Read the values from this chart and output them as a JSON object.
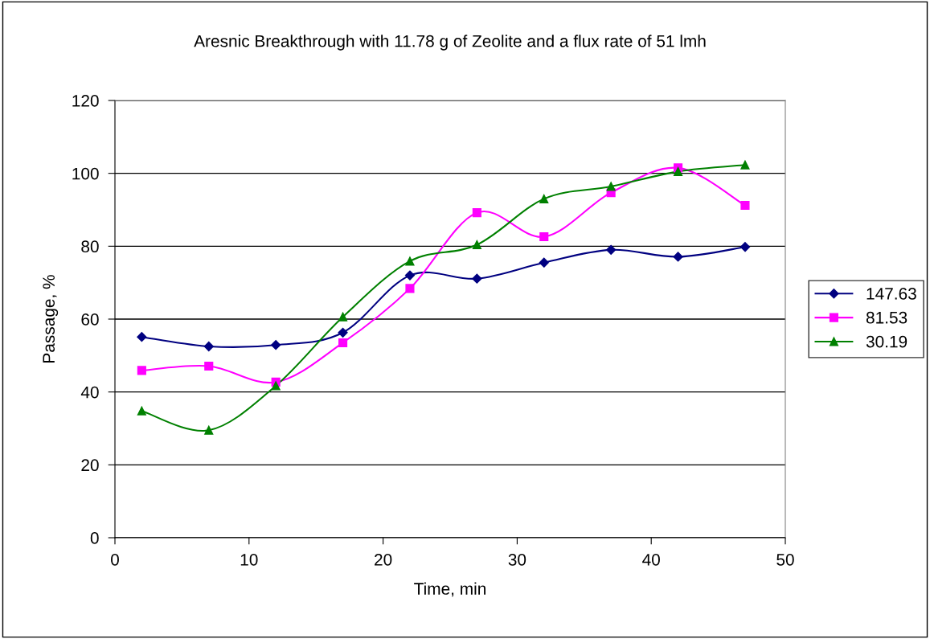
{
  "chart_data": {
    "type": "line",
    "title": "Aresnic Breakthrough with 11.78 g of Zeolite and a flux rate of 51 lmh",
    "xlabel": "Time, min",
    "ylabel": "Passage, %",
    "x": [
      2,
      7,
      12,
      17,
      22,
      27,
      32,
      37,
      42,
      47
    ],
    "series": [
      {
        "name": "147.63",
        "color": "#000080",
        "marker": "diamond",
        "values": [
          55.1,
          52.5,
          52.9,
          56.3,
          72.0,
          71.1,
          75.5,
          79.0,
          77.1,
          79.8
        ]
      },
      {
        "name": "81.53",
        "color": "#ff00ff",
        "marker": "square",
        "values": [
          45.9,
          47.1,
          42.7,
          53.5,
          68.4,
          89.2,
          82.6,
          94.7,
          101.5,
          91.2
        ]
      },
      {
        "name": "30.19",
        "color": "#008000",
        "marker": "triangle",
        "values": [
          34.8,
          29.5,
          41.7,
          60.6,
          75.9,
          80.4,
          93.0,
          96.4,
          100.5,
          102.3
        ]
      }
    ],
    "xlim": [
      0,
      50
    ],
    "xticks": [
      0,
      10,
      20,
      30,
      40,
      50
    ],
    "ylim": [
      0,
      120
    ],
    "yticks": [
      0,
      20,
      40,
      60,
      80,
      100,
      120
    ],
    "grid": "y",
    "legend": "right",
    "line_style": "solid"
  }
}
